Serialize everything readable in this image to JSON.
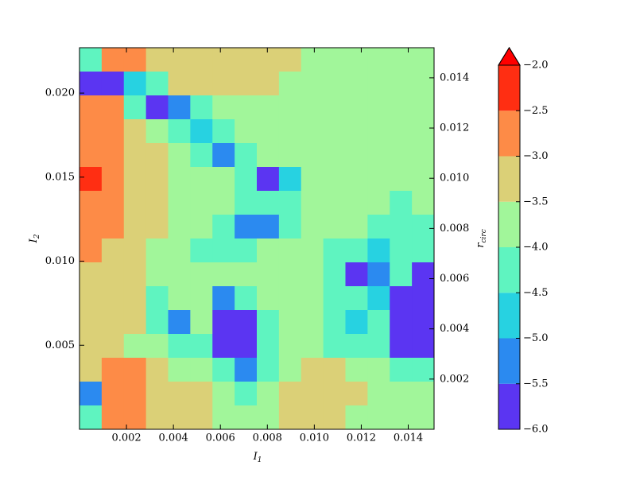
{
  "chart_data": {
    "type": "contour",
    "xlabel": {
      "main": "I",
      "sub": "1"
    },
    "ylabel": {
      "main": "I",
      "sub": "2"
    },
    "colorbar_label": {
      "main": "r",
      "sub": "circ"
    },
    "xlim": [
      0,
      0.0151
    ],
    "ylim": [
      0,
      0.0227
    ],
    "y2lim": [
      0,
      0.0152
    ],
    "xticks": [
      0.002,
      0.004,
      0.006,
      0.008,
      {
        "value": 0.01,
        "label": "0.010"
      },
      0.012,
      0.014
    ],
    "yticks": [
      0.005,
      {
        "value": 0.01,
        "label": "0.010"
      },
      0.015,
      {
        "value": 0.02,
        "label": "0.020"
      }
    ],
    "y2ticks": [
      0.002,
      0.004,
      0.006,
      0.008,
      {
        "value": 0.01,
        "label": "0.010"
      },
      0.012,
      0.014
    ],
    "levels": [
      -6,
      -5.5,
      -5,
      -4.5,
      -4,
      -3.5,
      -3,
      -2.5,
      -2
    ],
    "colors": [
      "#5b35f2",
      "#2b8af0",
      "#27d2e1",
      "#5ff4c0",
      "#a1f69a",
      "#dbd077",
      "#fd8b47",
      "#ff2e12"
    ],
    "extend_color": "#ff0000",
    "cbar_ticks": [
      {
        "value": -6,
        "label": "−6.0"
      },
      {
        "value": -5.5,
        "label": "−5.5"
      },
      {
        "value": -5,
        "label": "−5.0"
      },
      {
        "value": -4.5,
        "label": "−4.5"
      },
      {
        "value": -4,
        "label": "−4.0"
      },
      {
        "value": -3.5,
        "label": "−3.5"
      },
      {
        "value": -3,
        "label": "−3.0"
      },
      {
        "value": -2.5,
        "label": "−2.5"
      },
      {
        "value": -2,
        "label": "−2.0"
      }
    ],
    "z": [
      [
        -4.3,
        -2.8,
        -2.8,
        -3.3,
        -3.3,
        -3.3,
        -3.3,
        -3.3,
        -3.3,
        -3.3,
        -3.8,
        -3.8,
        -3.8,
        -3.8,
        -3.8,
        -3.8
      ],
      [
        -5.8,
        -5.8,
        -4.8,
        -4.3,
        -3.3,
        -3.3,
        -3.3,
        -3.3,
        -3.3,
        -3.8,
        -3.8,
        -3.8,
        -3.8,
        -3.8,
        -3.8,
        -3.8
      ],
      [
        -2.8,
        -2.8,
        -4.3,
        -5.8,
        -5.3,
        -4.3,
        -3.8,
        -3.8,
        -3.8,
        -3.8,
        -3.8,
        -3.8,
        -3.8,
        -3.8,
        -3.8,
        -3.8
      ],
      [
        -2.8,
        -2.8,
        -3.3,
        -3.8,
        -4.3,
        -4.8,
        -4.3,
        -3.8,
        -3.8,
        -3.8,
        -3.8,
        -3.8,
        -3.8,
        -3.8,
        -3.8,
        -3.8
      ],
      [
        -2.8,
        -2.8,
        -3.3,
        -3.3,
        -3.8,
        -4.3,
        -5.3,
        -4.3,
        -3.8,
        -3.8,
        -3.8,
        -3.8,
        -3.8,
        -3.8,
        -3.8,
        -3.8
      ],
      [
        -2.3,
        -2.8,
        -3.3,
        -3.3,
        -3.8,
        -3.8,
        -3.8,
        -4.3,
        -5.8,
        -4.8,
        -3.8,
        -3.8,
        -3.8,
        -3.8,
        -3.8,
        -3.8
      ],
      [
        -2.8,
        -2.8,
        -3.3,
        -3.3,
        -3.8,
        -3.8,
        -3.8,
        -4.3,
        -4.3,
        -4.3,
        -3.8,
        -3.8,
        -3.8,
        -3.8,
        -4.3,
        -3.8
      ],
      [
        -2.8,
        -2.8,
        -3.3,
        -3.3,
        -3.8,
        -3.8,
        -4.3,
        -5.3,
        -5.3,
        -4.3,
        -3.8,
        -3.8,
        -3.8,
        -4.3,
        -4.3,
        -4.3
      ],
      [
        -2.8,
        -3.3,
        -3.3,
        -3.8,
        -3.8,
        -4.3,
        -4.3,
        -4.3,
        -3.8,
        -3.8,
        -3.8,
        -4.3,
        -4.3,
        -4.8,
        -4.3,
        -4.3
      ],
      [
        -3.3,
        -3.3,
        -3.3,
        -3.8,
        -3.8,
        -3.8,
        -3.8,
        -3.8,
        -3.8,
        -3.8,
        -3.8,
        -4.3,
        -5.8,
        -5.3,
        -4.3,
        -5.8
      ],
      [
        -3.3,
        -3.3,
        -3.3,
        -4.3,
        -3.8,
        -3.8,
        -5.3,
        -4.3,
        -3.8,
        -3.8,
        -3.8,
        -4.3,
        -4.3,
        -4.8,
        -5.8,
        -5.8
      ],
      [
        -3.3,
        -3.3,
        -3.3,
        -4.3,
        -5.3,
        -3.8,
        -5.8,
        -5.8,
        -4.3,
        -3.8,
        -3.8,
        -4.3,
        -4.8,
        -4.3,
        -5.8,
        -5.8
      ],
      [
        -3.3,
        -3.3,
        -3.8,
        -3.8,
        -4.3,
        -4.3,
        -5.8,
        -5.8,
        -4.3,
        -3.8,
        -3.8,
        -4.3,
        -4.3,
        -4.3,
        -5.8,
        -5.8
      ],
      [
        -3.3,
        -2.8,
        -2.8,
        -3.3,
        -3.8,
        -3.8,
        -4.3,
        -5.3,
        -4.3,
        -3.8,
        -3.3,
        -3.3,
        -3.8,
        -3.8,
        -4.3,
        -4.3
      ],
      [
        -5.3,
        -2.8,
        -2.8,
        -3.3,
        -3.3,
        -3.3,
        -3.8,
        -4.3,
        -3.8,
        -3.3,
        -3.3,
        -3.3,
        -3.3,
        -3.8,
        -3.8,
        -3.8
      ],
      [
        -4.3,
        -2.8,
        -2.8,
        -3.3,
        -3.3,
        -3.3,
        -3.8,
        -3.8,
        -3.8,
        -3.3,
        -3.3,
        -3.3,
        -3.8,
        -3.8,
        -3.8,
        -3.8
      ]
    ]
  }
}
